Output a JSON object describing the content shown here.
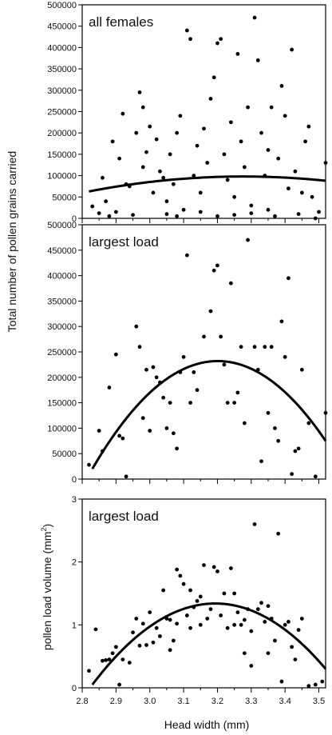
{
  "figure": {
    "y_title_top": "Total number of pollen grains carried",
    "y_title_bottom": "pollen load volume (mm",
    "y_title_bottom_sup": "2",
    "y_title_bottom_close": ")",
    "x_title": "Head width (mm)"
  },
  "chart_data": [
    {
      "type": "scatter",
      "title": "all females",
      "xlabel": "Head width (mm)",
      "ylabel": "Total number of pollen grains carried",
      "xlim": [
        2.8,
        3.52
      ],
      "ylim": [
        0,
        500000
      ],
      "yticks": [
        0,
        50000,
        100000,
        150000,
        200000,
        250000,
        300000,
        350000,
        400000,
        450000,
        500000
      ],
      "ytick_labels": [
        "0",
        "50000",
        "100000",
        "150000",
        "200000",
        "250000",
        "300000",
        "350000",
        "400000",
        "450000",
        "500000"
      ],
      "grid": false,
      "fit": {
        "kind": "quadratic",
        "points": [
          [
            2.82,
            63000
          ],
          [
            3.2,
            97000
          ],
          [
            3.52,
            88000
          ]
        ]
      },
      "points": [
        [
          2.83,
          28000
        ],
        [
          2.85,
          12000
        ],
        [
          2.86,
          95000
        ],
        [
          2.87,
          40000
        ],
        [
          2.88,
          5000
        ],
        [
          2.89,
          180000
        ],
        [
          2.9,
          15000
        ],
        [
          2.91,
          140000
        ],
        [
          2.92,
          245000
        ],
        [
          2.93,
          80000
        ],
        [
          2.94,
          75000
        ],
        [
          2.95,
          8000
        ],
        [
          2.96,
          200000
        ],
        [
          2.97,
          295000
        ],
        [
          2.98,
          260000
        ],
        [
          2.98,
          120000
        ],
        [
          2.99,
          155000
        ],
        [
          3.0,
          215000
        ],
        [
          3.01,
          60000
        ],
        [
          3.02,
          185000
        ],
        [
          3.03,
          110000
        ],
        [
          3.04,
          95000
        ],
        [
          3.05,
          40000
        ],
        [
          3.06,
          150000
        ],
        [
          3.07,
          80000
        ],
        [
          3.08,
          200000
        ],
        [
          3.09,
          240000
        ],
        [
          3.1,
          20000
        ],
        [
          3.11,
          440000
        ],
        [
          3.12,
          420000
        ],
        [
          3.13,
          100000
        ],
        [
          3.14,
          170000
        ],
        [
          3.15,
          60000
        ],
        [
          3.16,
          210000
        ],
        [
          3.17,
          130000
        ],
        [
          3.18,
          280000
        ],
        [
          3.19,
          330000
        ],
        [
          3.2,
          410000
        ],
        [
          3.21,
          420000
        ],
        [
          3.22,
          150000
        ],
        [
          3.23,
          90000
        ],
        [
          3.24,
          225000
        ],
        [
          3.25,
          50000
        ],
        [
          3.26,
          385000
        ],
        [
          3.27,
          180000
        ],
        [
          3.28,
          120000
        ],
        [
          3.29,
          260000
        ],
        [
          3.3,
          30000
        ],
        [
          3.31,
          470000
        ],
        [
          3.32,
          370000
        ],
        [
          3.33,
          200000
        ],
        [
          3.34,
          100000
        ],
        [
          3.35,
          160000
        ],
        [
          3.36,
          260000
        ],
        [
          3.37,
          5000
        ],
        [
          3.38,
          140000
        ],
        [
          3.39,
          310000
        ],
        [
          3.4,
          240000
        ],
        [
          3.41,
          70000
        ],
        [
          3.42,
          395000
        ],
        [
          3.43,
          110000
        ],
        [
          3.44,
          10000
        ],
        [
          3.45,
          60000
        ],
        [
          3.46,
          180000
        ],
        [
          3.47,
          215000
        ],
        [
          3.48,
          50000
        ],
        [
          3.49,
          0
        ],
        [
          3.5,
          15000
        ],
        [
          3.52,
          130000
        ],
        [
          3.05,
          10000
        ],
        [
          3.08,
          5000
        ],
        [
          3.15,
          15000
        ],
        [
          3.2,
          5000
        ],
        [
          3.25,
          8000
        ],
        [
          3.3,
          12000
        ],
        [
          3.35,
          20000
        ]
      ]
    },
    {
      "type": "scatter",
      "title": "largest load",
      "ylabel": "Total number of pollen grains carried",
      "xlim": [
        2.8,
        3.52
      ],
      "ylim": [
        0,
        500000
      ],
      "yticks": [
        0,
        50000,
        100000,
        150000,
        200000,
        250000,
        300000,
        350000,
        400000,
        450000,
        500000
      ],
      "ytick_labels": [
        "0",
        "50000",
        "100000",
        "150000",
        "200000",
        "250000",
        "300000",
        "350000",
        "400000",
        "450000",
        "500000"
      ],
      "grid": false,
      "fit": {
        "kind": "quadratic",
        "points": [
          [
            2.83,
            20000
          ],
          [
            3.2,
            232000
          ],
          [
            3.52,
            75000
          ]
        ]
      },
      "points": [
        [
          2.82,
          28000
        ],
        [
          2.85,
          95000
        ],
        [
          2.86,
          55000
        ],
        [
          2.88,
          180000
        ],
        [
          2.9,
          245000
        ],
        [
          2.91,
          85000
        ],
        [
          2.92,
          80000
        ],
        [
          2.93,
          5000
        ],
        [
          2.96,
          300000
        ],
        [
          2.97,
          260000
        ],
        [
          2.98,
          120000
        ],
        [
          2.99,
          215000
        ],
        [
          3.0,
          95000
        ],
        [
          3.01,
          220000
        ],
        [
          3.02,
          200000
        ],
        [
          3.03,
          190000
        ],
        [
          3.04,
          160000
        ],
        [
          3.05,
          100000
        ],
        [
          3.06,
          150000
        ],
        [
          3.07,
          90000
        ],
        [
          3.08,
          60000
        ],
        [
          3.09,
          210000
        ],
        [
          3.1,
          240000
        ],
        [
          3.11,
          440000
        ],
        [
          3.12,
          150000
        ],
        [
          3.13,
          210000
        ],
        [
          3.14,
          175000
        ],
        [
          3.16,
          280000
        ],
        [
          3.18,
          330000
        ],
        [
          3.19,
          410000
        ],
        [
          3.2,
          420000
        ],
        [
          3.21,
          280000
        ],
        [
          3.22,
          225000
        ],
        [
          3.23,
          150000
        ],
        [
          3.24,
          385000
        ],
        [
          3.25,
          150000
        ],
        [
          3.26,
          170000
        ],
        [
          3.27,
          260000
        ],
        [
          3.28,
          110000
        ],
        [
          3.29,
          470000
        ],
        [
          3.31,
          260000
        ],
        [
          3.32,
          215000
        ],
        [
          3.33,
          35000
        ],
        [
          3.34,
          260000
        ],
        [
          3.35,
          130000
        ],
        [
          3.36,
          260000
        ],
        [
          3.37,
          100000
        ],
        [
          3.38,
          75000
        ],
        [
          3.39,
          310000
        ],
        [
          3.4,
          240000
        ],
        [
          3.41,
          395000
        ],
        [
          3.42,
          10000
        ],
        [
          3.43,
          55000
        ],
        [
          3.44,
          60000
        ],
        [
          3.45,
          215000
        ],
        [
          3.47,
          110000
        ],
        [
          3.49,
          5000
        ],
        [
          3.52,
          130000
        ]
      ]
    },
    {
      "type": "scatter",
      "title": "largest load",
      "ylabel": "pollen load volume (mm2)",
      "xlabel": "Head width (mm)",
      "xlim": [
        2.8,
        3.52
      ],
      "ylim": [
        0,
        3
      ],
      "yticks": [
        0,
        1,
        2,
        3
      ],
      "ytick_labels": [
        "0",
        "1",
        "2",
        "3"
      ],
      "xticks": [
        2.8,
        2.9,
        3.0,
        3.1,
        3.2,
        3.3,
        3.4,
        3.5
      ],
      "xtick_labels": [
        "2.8",
        "2.9",
        "3.0",
        "3.1",
        "3.2",
        "3.3",
        "3.4",
        "3.5"
      ],
      "grid": false,
      "fit": {
        "kind": "quadratic",
        "points": [
          [
            2.83,
            0.05
          ],
          [
            3.19,
            1.34
          ],
          [
            3.52,
            0.3
          ]
        ]
      },
      "points": [
        [
          2.82,
          0.27
        ],
        [
          2.84,
          0.93
        ],
        [
          2.86,
          0.43
        ],
        [
          2.87,
          0.44
        ],
        [
          2.88,
          0.45
        ],
        [
          2.89,
          0.55
        ],
        [
          2.9,
          0.65
        ],
        [
          2.91,
          0.05
        ],
        [
          2.92,
          0.45
        ],
        [
          2.94,
          0.4
        ],
        [
          2.95,
          0.88
        ],
        [
          2.96,
          1.1
        ],
        [
          2.97,
          0.67
        ],
        [
          2.98,
          1.02
        ],
        [
          2.99,
          0.68
        ],
        [
          3.0,
          1.2
        ],
        [
          3.01,
          0.72
        ],
        [
          3.02,
          0.95
        ],
        [
          3.03,
          0.82
        ],
        [
          3.04,
          1.55
        ],
        [
          3.05,
          1.1
        ],
        [
          3.06,
          0.6
        ],
        [
          3.07,
          0.75
        ],
        [
          3.08,
          1.88
        ],
        [
          3.09,
          1.78
        ],
        [
          3.1,
          1.65
        ],
        [
          3.11,
          1.15
        ],
        [
          3.12,
          1.55
        ],
        [
          3.13,
          1.28
        ],
        [
          3.14,
          1.38
        ],
        [
          3.15,
          1.0
        ],
        [
          3.16,
          1.95
        ],
        [
          3.17,
          1.1
        ],
        [
          3.18,
          1.25
        ],
        [
          3.19,
          1.92
        ],
        [
          3.2,
          1.85
        ],
        [
          3.21,
          1.15
        ],
        [
          3.22,
          1.5
        ],
        [
          3.23,
          0.95
        ],
        [
          3.24,
          1.9
        ],
        [
          3.25,
          1.5
        ],
        [
          3.26,
          1.2
        ],
        [
          3.27,
          1.0
        ],
        [
          3.28,
          0.55
        ],
        [
          3.29,
          1.25
        ],
        [
          3.3,
          0.35
        ],
        [
          3.31,
          2.6
        ],
        [
          3.32,
          1.25
        ],
        [
          3.33,
          1.35
        ],
        [
          3.34,
          1.05
        ],
        [
          3.35,
          0.55
        ],
        [
          3.36,
          1.1
        ],
        [
          3.37,
          0.75
        ],
        [
          3.38,
          2.45
        ],
        [
          3.39,
          0.1
        ],
        [
          3.4,
          1.0
        ],
        [
          3.41,
          1.05
        ],
        [
          3.42,
          0.65
        ],
        [
          3.43,
          0.45
        ],
        [
          3.44,
          0.92
        ],
        [
          3.45,
          1.1
        ],
        [
          3.47,
          0.03
        ],
        [
          3.49,
          0.05
        ],
        [
          3.51,
          0.1
        ],
        [
          3.25,
          1.0
        ],
        [
          3.08,
          1.02
        ],
        [
          3.3,
          0.9
        ],
        [
          3.12,
          0.95
        ],
        [
          3.35,
          1.3
        ],
        [
          3.15,
          1.45
        ],
        [
          3.06,
          1.08
        ],
        [
          3.28,
          1.08
        ]
      ]
    }
  ]
}
